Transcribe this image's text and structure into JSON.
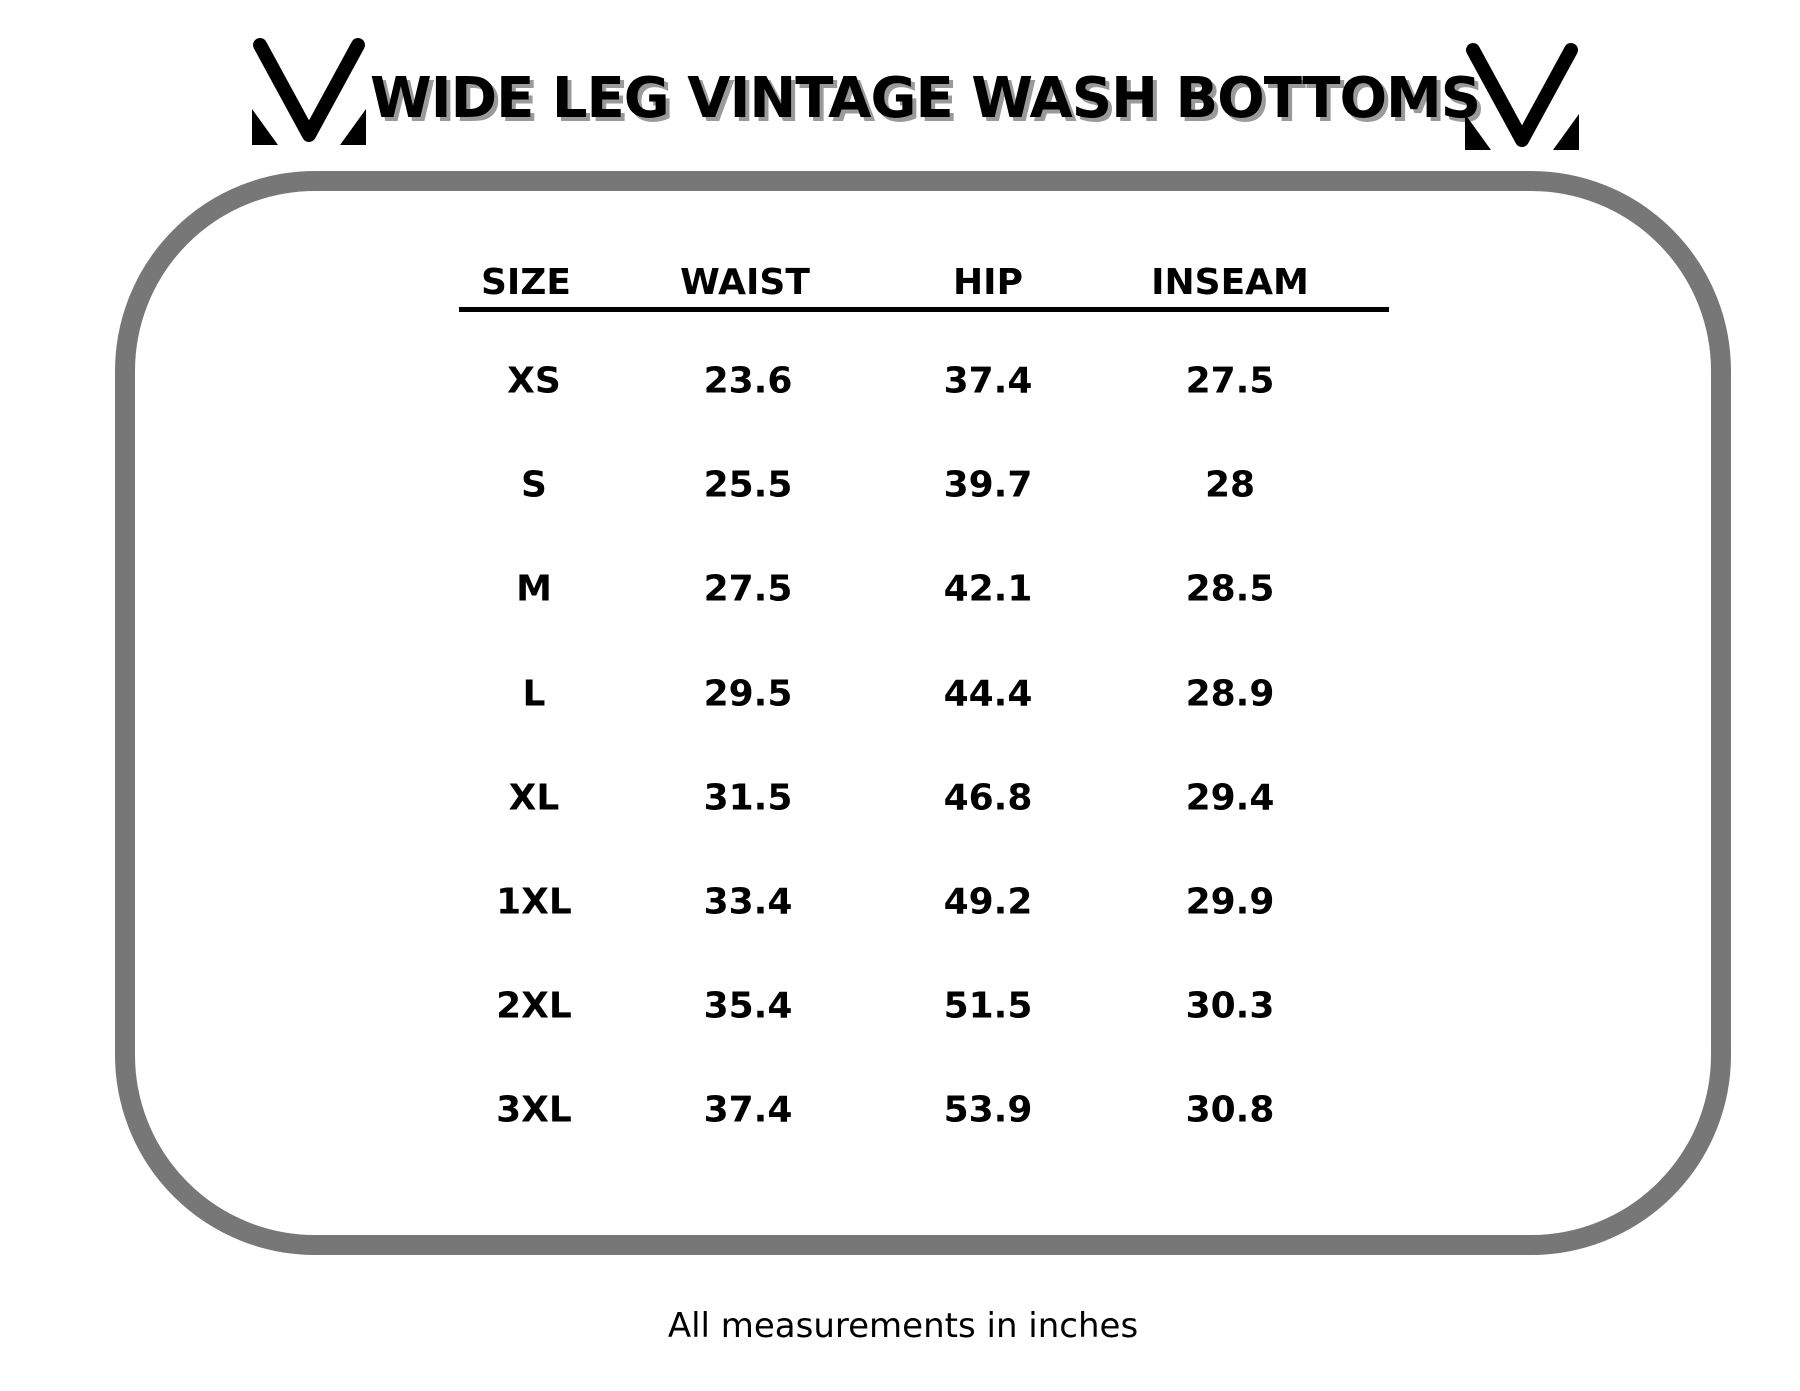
{
  "title": "WIDE LEG VINTAGE WASH BOTTOMS",
  "logo_icon": "brand-v-logo",
  "table": {
    "headers": [
      "SIZE",
      "WAIST",
      "HIP",
      "INSEAM"
    ],
    "rows": [
      [
        "XS",
        "23.6",
        "37.4",
        "27.5"
      ],
      [
        "S",
        "25.5",
        "39.7",
        "28"
      ],
      [
        "M",
        "27.5",
        "42.1",
        "28.5"
      ],
      [
        "L",
        "29.5",
        "44.4",
        "28.9"
      ],
      [
        "XL",
        "31.5",
        "46.8",
        "29.4"
      ],
      [
        "1XL",
        "33.4",
        "49.2",
        "29.9"
      ],
      [
        "2XL",
        "35.4",
        "51.5",
        "30.3"
      ],
      [
        "3XL",
        "37.4",
        "53.9",
        "30.8"
      ]
    ]
  },
  "footer": "All measurements in inches",
  "colors": {
    "frame": "#777777",
    "text": "#000000",
    "shadow": "#9a9a9a"
  }
}
